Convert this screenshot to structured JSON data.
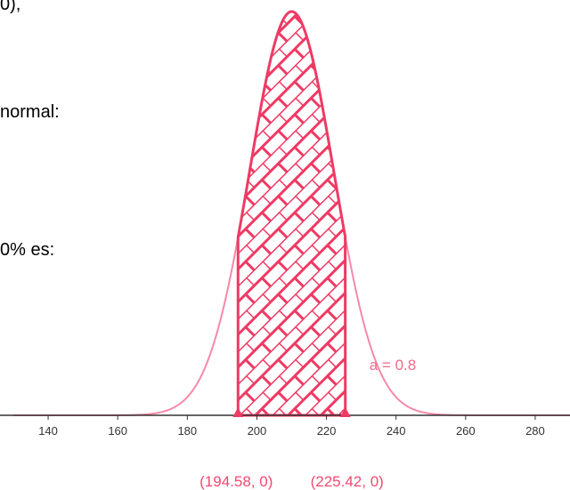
{
  "text_fragments": [
    "0),",
    "normal:",
    "0% es:"
  ],
  "chart_data": {
    "type": "area",
    "title": "",
    "xlabel": "",
    "ylabel": "",
    "xlim": [
      130,
      290
    ],
    "x_ticks": [
      140,
      160,
      180,
      200,
      220,
      240,
      260,
      280
    ],
    "distribution": {
      "kind": "normal",
      "mean": 210,
      "sd": 12.05
    },
    "shaded_interval": [
      194.58,
      225.42
    ],
    "points": [
      {
        "x": 194.58,
        "y": 0,
        "label": "(194.58, 0)"
      },
      {
        "x": 225.42,
        "y": 0,
        "label": "(225.42, 0)"
      }
    ],
    "annotation": "a = 0.8",
    "colors": {
      "curve_light": "#f58aa6",
      "fill_hatch": "#ee3a64",
      "axis": "#333333",
      "labels": "#f04a70"
    }
  }
}
